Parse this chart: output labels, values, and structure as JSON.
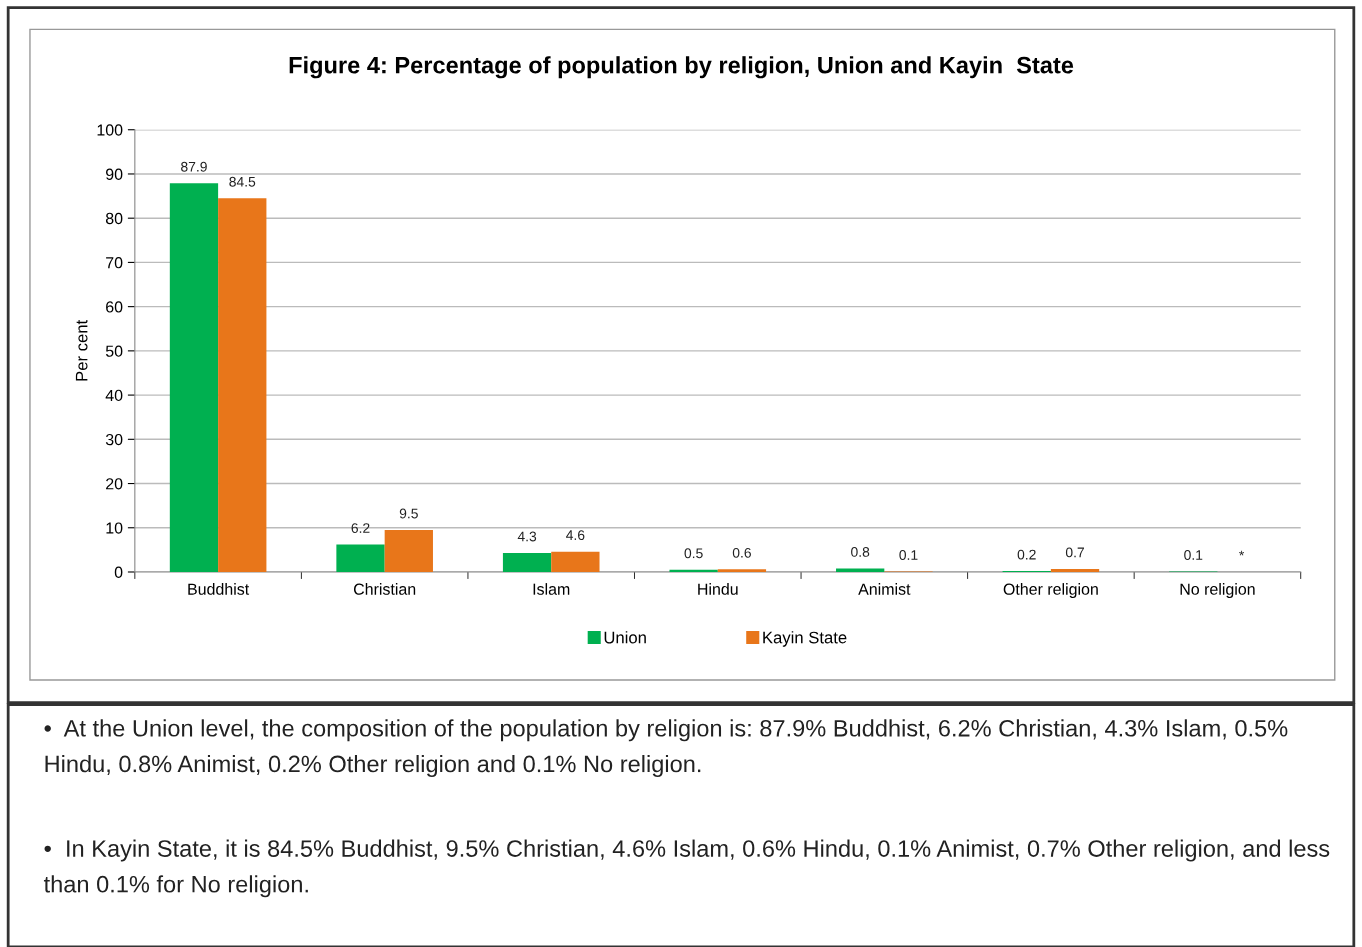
{
  "chart_data": {
    "type": "bar",
    "title": "Figure 4: Percentage of population by religion, Union and Kayin  State",
    "ylabel": "Per cent",
    "categories": [
      "Buddhist",
      "Christian",
      "Islam",
      "Hindu",
      "Animist",
      "Other religion",
      "No religion"
    ],
    "series": [
      {
        "name": "Union",
        "color": "#00b050",
        "values": [
          87.9,
          6.2,
          4.3,
          0.5,
          0.8,
          0.2,
          0.1
        ],
        "value_labels": [
          "87.9",
          "6.2",
          "4.3",
          "0.5",
          "0.8",
          "0.2",
          "0.1"
        ]
      },
      {
        "name": "Kayin State",
        "color": "#e8761a",
        "values": [
          84.5,
          9.5,
          4.6,
          0.6,
          0.1,
          0.7,
          null
        ],
        "value_labels": [
          "84.5",
          "9.5",
          "4.6",
          "0.6",
          "0.1",
          "0.7",
          "*"
        ]
      }
    ],
    "ylim": [
      0,
      100
    ],
    "yticks": [
      0,
      10,
      20,
      30,
      40,
      50,
      60,
      70,
      80,
      90,
      100
    ],
    "grid": "y",
    "legend": "bottom",
    "annotations": [
      "•  At the Union level, the composition of the population by religion is: 87.9% Buddhist, 6.2% Christian, 4.3% Islam, 0.5% Hindu, 0.8% Animist, 0.2% Other religion and 0.1% No religion.",
      "•  In Kayin State, it is 84.5% Buddhist, 9.5% Christian, 4.6% Islam, 0.6% Hindu, 0.1% Animist, 0.7% Other religion, and less than 0.1% for No religion."
    ]
  }
}
